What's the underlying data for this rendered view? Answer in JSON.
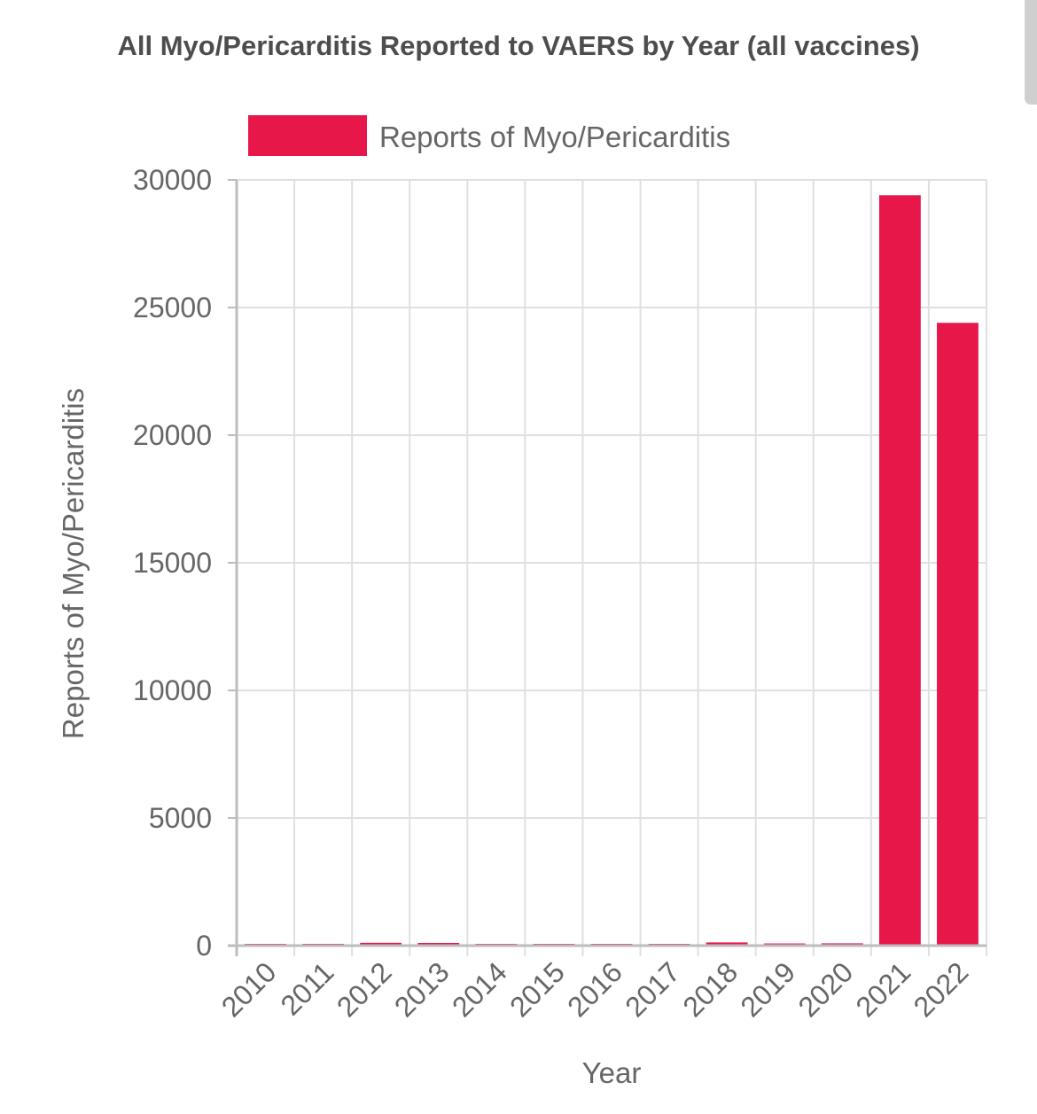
{
  "chart_data": {
    "type": "bar",
    "title": "All Myo/Pericarditis Reported to VAERS by Year (all vaccines)",
    "xlabel": "Year",
    "ylabel": "Reports of Myo/Pericarditis",
    "categories": [
      "2010",
      "2011",
      "2012",
      "2013",
      "2014",
      "2015",
      "2016",
      "2017",
      "2018",
      "2019",
      "2020",
      "2021",
      "2022"
    ],
    "series": [
      {
        "name": "Reports of Myo/Pericarditis",
        "values": [
          60,
          70,
          110,
          105,
          55,
          45,
          50,
          55,
          125,
          85,
          90,
          29400,
          24400
        ],
        "color": "#e8174a"
      }
    ],
    "ylim": [
      0,
      30000
    ],
    "yticks": [
      "0",
      "5000",
      "10000",
      "15000",
      "20000",
      "25000",
      "30000"
    ],
    "grid": true,
    "legend": "top-center"
  }
}
